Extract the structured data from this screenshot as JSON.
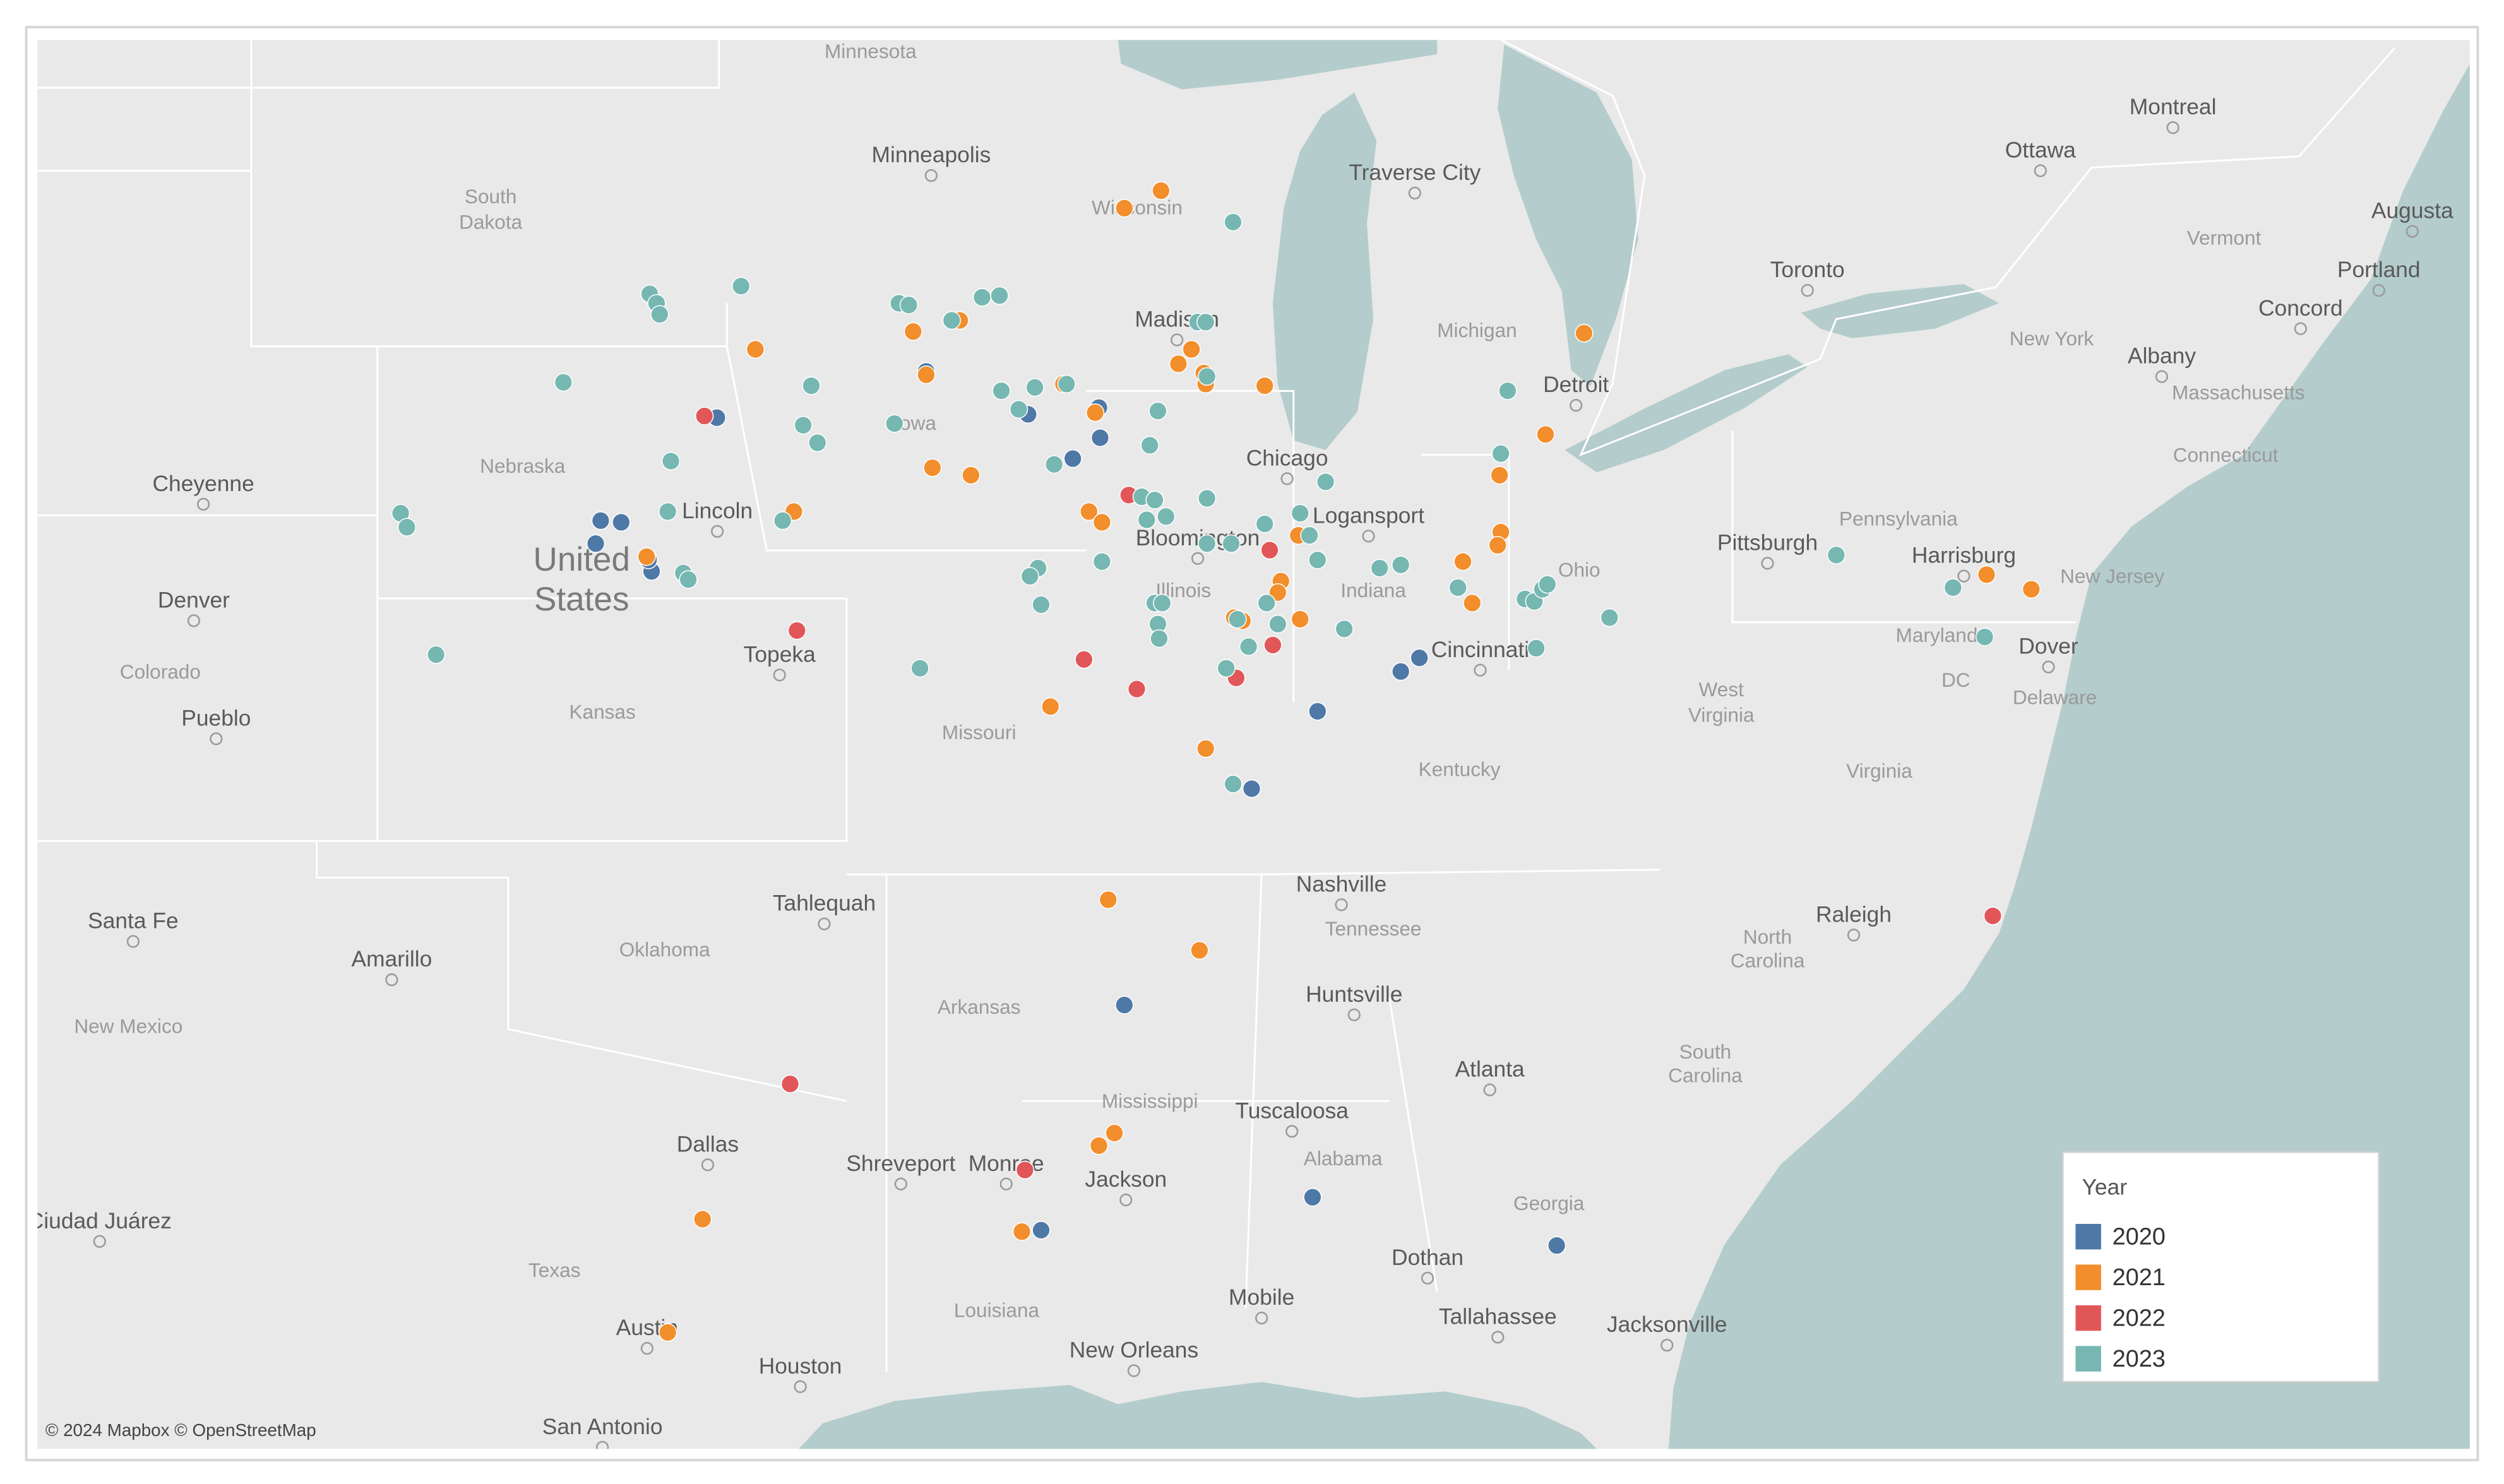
{
  "map": {
    "legend": {
      "title": "Year"
    },
    "series": [
      {
        "name": "2020",
        "color": "#4e79a7",
        "lon": [
          -96.81,
          -93.44,
          -91.8,
          -90.66,
          -90.64,
          -91.08,
          -98.68,
          -98.35,
          -98.76,
          -97.86,
          -97.91,
          -87.14,
          -85.8,
          -85.5,
          -88.2,
          -90.25,
          -91.59,
          -87.22,
          -83.29
        ],
        "lat": [
          42.19,
          42.74,
          42.23,
          42.31,
          41.95,
          41.7,
          40.95,
          40.93,
          40.67,
          40.33,
          40.47,
          38.59,
          39.09,
          39.26,
          37.61,
          34.8,
          31.77,
          32.22,
          31.56
        ]
      },
      {
        "name": "2021",
        "color": "#f28e2b",
        "lon": [
          -89.66,
          -90.25,
          -96.19,
          -93.65,
          -92.9,
          -93.44,
          -91.23,
          -89.17,
          -89.38,
          -88.97,
          -88.94,
          -87.99,
          -90.72,
          -82.85,
          -83.47,
          -84.21,
          -93.34,
          -92.72,
          -95.57,
          -90.82,
          -90.61,
          -84.19,
          -84.24,
          -84.8,
          -84.65,
          -87.73,
          -87.78,
          -87.45,
          -97.94,
          -88.48,
          -88.35,
          -87.42,
          -91.44,
          -88.94,
          -90.51,
          -89.04,
          -90.66,
          -90.41,
          -91.9,
          -97.04,
          -97.6,
          -76.37,
          -75.65
        ],
        "lat": [
          44.84,
          44.64,
          43.0,
          43.21,
          43.34,
          42.7,
          42.59,
          43.0,
          42.83,
          42.72,
          42.59,
          42.57,
          42.25,
          43.19,
          41.99,
          41.5,
          41.59,
          41.5,
          41.06,
          41.06,
          40.93,
          40.81,
          40.65,
          40.45,
          39.94,
          40.21,
          40.07,
          40.77,
          40.51,
          39.76,
          39.72,
          39.74,
          38.65,
          38.12,
          36.18,
          35.52,
          32.92,
          33.09,
          31.75,
          31.92,
          30.36,
          40.29,
          40.11
        ]
      },
      {
        "name": "2022",
        "color": "#e15759",
        "lon": [
          -97.01,
          -90.18,
          -87.91,
          -95.52,
          -90.9,
          -90.05,
          -88.45,
          -87.86,
          -95.63,
          -91.85,
          -76.27
        ],
        "lat": [
          42.21,
          41.26,
          40.59,
          39.6,
          39.24,
          38.87,
          39.01,
          39.42,
          33.75,
          32.59,
          35.97
        ]
      },
      {
        "name": "2023",
        "color": "#76b7b2",
        "lon": [
          -88.5,
          -97.89,
          -97.78,
          -97.73,
          -96.42,
          -93.88,
          -93.72,
          -92.54,
          -92.26,
          -93.03,
          -89.07,
          -88.94,
          -99.28,
          -95.29,
          -92.23,
          -91.69,
          -91.18,
          -88.92,
          -89.71,
          -91.95,
          -93.95,
          -95.42,
          -95.19,
          -89.84,
          -84.08,
          -84.19,
          -97.55,
          -91.38,
          -87.01,
          -101.9,
          -101.8,
          -97.6,
          -95.75,
          -89.97,
          -89.76,
          -88.92,
          -89.89,
          -89.58,
          -87.99,
          -87.42,
          -87.27,
          -87.14,
          -88.92,
          -88.53,
          -90.61,
          -91.64,
          -91.77,
          -91.59,
          -97.35,
          -97.27,
          -89.76,
          -89.64,
          -89.71,
          -89.69,
          -88.25,
          -87.78,
          -87.96,
          -88.43,
          -88.61,
          -86.71,
          -86.14,
          -85.8,
          -84.88,
          -83.8,
          -83.65,
          -83.52,
          -83.44,
          -82.44,
          -83.62,
          -78.79,
          -76.91,
          -76.4,
          -101.33,
          -93.54,
          -88.5
        ],
        "lat": [
          44.48,
          43.65,
          43.54,
          43.41,
          43.74,
          43.54,
          43.52,
          43.61,
          43.63,
          43.34,
          43.32,
          43.32,
          42.61,
          42.57,
          42.51,
          42.55,
          42.59,
          42.68,
          42.27,
          42.29,
          42.12,
          42.1,
          41.89,
          41.86,
          42.51,
          41.76,
          41.67,
          41.63,
          41.42,
          41.04,
          40.87,
          41.06,
          40.95,
          41.24,
          41.2,
          41.22,
          40.96,
          41.0,
          40.91,
          41.04,
          40.77,
          40.47,
          40.67,
          40.67,
          40.45,
          40.37,
          40.27,
          39.92,
          40.31,
          40.23,
          39.94,
          39.94,
          39.68,
          39.5,
          39.4,
          39.68,
          39.94,
          39.74,
          39.13,
          39.62,
          40.37,
          40.41,
          40.13,
          39.99,
          39.96,
          40.11,
          40.17,
          39.76,
          39.38,
          40.53,
          40.13,
          39.52,
          39.3,
          39.13,
          37.67
        ]
      }
    ],
    "labels": [
      "Minnesota",
      "Minneapolis",
      "South",
      "Dakota",
      "Wisconsin",
      "Traverse City",
      "Michigan",
      "Madison",
      "Detroit",
      "Toronto",
      "Ottawa",
      "Montreal",
      "Augusta",
      "Portland",
      "Vermont",
      "Concord",
      "New York",
      "Albany",
      "Massachusetts",
      "Connecticut",
      "Pennsylvania",
      "Pittsburgh",
      "Harrisburg",
      "New Jersey",
      "Maryland",
      "Dover",
      "DC",
      "Delaware",
      "West",
      "Virginia",
      "Virginia",
      "Ohio",
      "Cincinnati",
      "Indiana",
      "Logansport",
      "Chicago",
      "Bloomington",
      "Illinois",
      "Iowa",
      "Nebraska",
      "Cheyenne",
      "Lincoln",
      "United",
      "States",
      "Denver",
      "Colorado",
      "Pueblo",
      "Kansas",
      "Topeka",
      "Missouri",
      "Kentucky",
      "Nashville",
      "Tennessee",
      "Raleigh",
      "North",
      "Carolina",
      "Huntsville",
      "Atlanta",
      "South",
      "Carolina",
      "Tuscaloosa",
      "Alabama",
      "Mississippi",
      "Jackson",
      "Georgia",
      "Arkansas",
      "Oklahoma",
      "Tahlequah",
      "Amarillo",
      "Santa Fe",
      "New Mexico",
      "Ciudad Juárez",
      "Dallas",
      "Shreveport",
      "Monroe",
      "Texas",
      "Louisiana",
      "Mobile",
      "Dothan",
      "Tallahassee",
      "Jacksonville",
      "New Orleans",
      "Houston",
      "San Antonio",
      "Austin"
    ],
    "attribution": "© 2024 Mapbox © OpenStreetMap"
  }
}
